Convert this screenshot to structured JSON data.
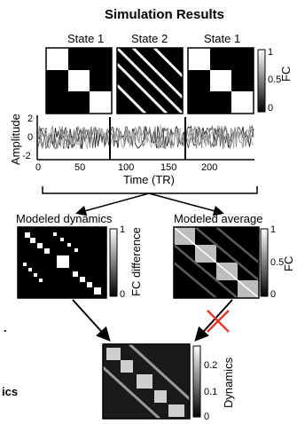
{
  "figure": {
    "title": "Simulation Results",
    "state_labels": [
      "State 1",
      "State 2",
      "State 1"
    ],
    "fc_colorbar": {
      "label": "FC",
      "ticks": [
        "1",
        "0.5",
        "0"
      ]
    },
    "timeseries": {
      "ylabel": "Amplitude",
      "xlabel": "Time (TR)",
      "yticks": [
        "2",
        "0",
        "-2"
      ],
      "xticks": [
        "0",
        "50",
        "100",
        "150",
        "200"
      ]
    },
    "modeled_dynamics": {
      "label": "Modeled dynamics",
      "colorbar_label": "FC difference",
      "ticks": [
        "1",
        "0"
      ]
    },
    "modeled_average": {
      "label": "Modeled average",
      "colorbar_label": "FC",
      "ticks": [
        "1",
        "0.5",
        "0"
      ]
    },
    "dynamics_panel": {
      "colorbar_label": "Dynamics",
      "ticks": [
        "0.2",
        "0.1",
        "0"
      ]
    },
    "left_edge_fragments": {
      "dot": ".",
      "ics": "ics"
    },
    "colors": {
      "matrix_dark": "#000000",
      "matrix_light": "#ffffff",
      "cross_mark": "#e23b2e",
      "accent_text": "#000000"
    }
  }
}
